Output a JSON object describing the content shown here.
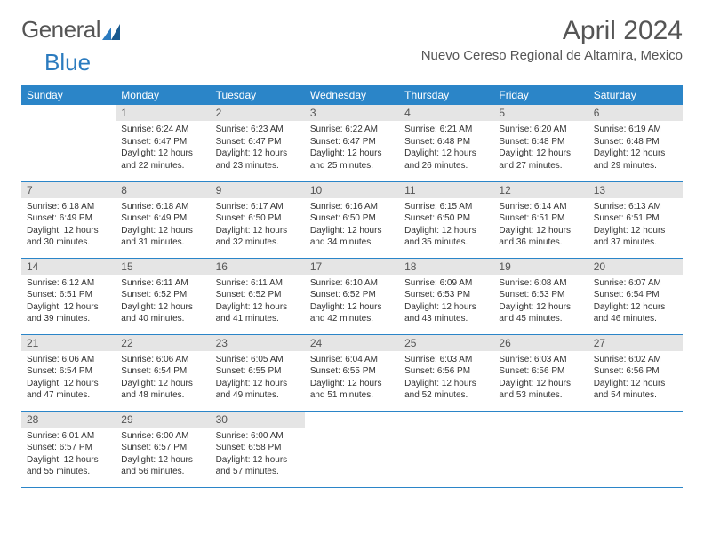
{
  "logo": {
    "part1": "General",
    "part2": "Blue"
  },
  "title": "April 2024",
  "location": "Nuevo Cereso Regional de Altamira, Mexico",
  "colors": {
    "header_bg": "#2b85c8",
    "header_text": "#ffffff",
    "daynum_bg": "#e5e5e5",
    "border": "#2b85c8",
    "text": "#333333",
    "title_text": "#555555"
  },
  "weekdays": [
    "Sunday",
    "Monday",
    "Tuesday",
    "Wednesday",
    "Thursday",
    "Friday",
    "Saturday"
  ],
  "weeks": [
    [
      {
        "blank": true
      },
      {
        "day": "1",
        "sunrise": "Sunrise: 6:24 AM",
        "sunset": "Sunset: 6:47 PM",
        "daylight": "Daylight: 12 hours and 22 minutes."
      },
      {
        "day": "2",
        "sunrise": "Sunrise: 6:23 AM",
        "sunset": "Sunset: 6:47 PM",
        "daylight": "Daylight: 12 hours and 23 minutes."
      },
      {
        "day": "3",
        "sunrise": "Sunrise: 6:22 AM",
        "sunset": "Sunset: 6:47 PM",
        "daylight": "Daylight: 12 hours and 25 minutes."
      },
      {
        "day": "4",
        "sunrise": "Sunrise: 6:21 AM",
        "sunset": "Sunset: 6:48 PM",
        "daylight": "Daylight: 12 hours and 26 minutes."
      },
      {
        "day": "5",
        "sunrise": "Sunrise: 6:20 AM",
        "sunset": "Sunset: 6:48 PM",
        "daylight": "Daylight: 12 hours and 27 minutes."
      },
      {
        "day": "6",
        "sunrise": "Sunrise: 6:19 AM",
        "sunset": "Sunset: 6:48 PM",
        "daylight": "Daylight: 12 hours and 29 minutes."
      }
    ],
    [
      {
        "day": "7",
        "sunrise": "Sunrise: 6:18 AM",
        "sunset": "Sunset: 6:49 PM",
        "daylight": "Daylight: 12 hours and 30 minutes."
      },
      {
        "day": "8",
        "sunrise": "Sunrise: 6:18 AM",
        "sunset": "Sunset: 6:49 PM",
        "daylight": "Daylight: 12 hours and 31 minutes."
      },
      {
        "day": "9",
        "sunrise": "Sunrise: 6:17 AM",
        "sunset": "Sunset: 6:50 PM",
        "daylight": "Daylight: 12 hours and 32 minutes."
      },
      {
        "day": "10",
        "sunrise": "Sunrise: 6:16 AM",
        "sunset": "Sunset: 6:50 PM",
        "daylight": "Daylight: 12 hours and 34 minutes."
      },
      {
        "day": "11",
        "sunrise": "Sunrise: 6:15 AM",
        "sunset": "Sunset: 6:50 PM",
        "daylight": "Daylight: 12 hours and 35 minutes."
      },
      {
        "day": "12",
        "sunrise": "Sunrise: 6:14 AM",
        "sunset": "Sunset: 6:51 PM",
        "daylight": "Daylight: 12 hours and 36 minutes."
      },
      {
        "day": "13",
        "sunrise": "Sunrise: 6:13 AM",
        "sunset": "Sunset: 6:51 PM",
        "daylight": "Daylight: 12 hours and 37 minutes."
      }
    ],
    [
      {
        "day": "14",
        "sunrise": "Sunrise: 6:12 AM",
        "sunset": "Sunset: 6:51 PM",
        "daylight": "Daylight: 12 hours and 39 minutes."
      },
      {
        "day": "15",
        "sunrise": "Sunrise: 6:11 AM",
        "sunset": "Sunset: 6:52 PM",
        "daylight": "Daylight: 12 hours and 40 minutes."
      },
      {
        "day": "16",
        "sunrise": "Sunrise: 6:11 AM",
        "sunset": "Sunset: 6:52 PM",
        "daylight": "Daylight: 12 hours and 41 minutes."
      },
      {
        "day": "17",
        "sunrise": "Sunrise: 6:10 AM",
        "sunset": "Sunset: 6:52 PM",
        "daylight": "Daylight: 12 hours and 42 minutes."
      },
      {
        "day": "18",
        "sunrise": "Sunrise: 6:09 AM",
        "sunset": "Sunset: 6:53 PM",
        "daylight": "Daylight: 12 hours and 43 minutes."
      },
      {
        "day": "19",
        "sunrise": "Sunrise: 6:08 AM",
        "sunset": "Sunset: 6:53 PM",
        "daylight": "Daylight: 12 hours and 45 minutes."
      },
      {
        "day": "20",
        "sunrise": "Sunrise: 6:07 AM",
        "sunset": "Sunset: 6:54 PM",
        "daylight": "Daylight: 12 hours and 46 minutes."
      }
    ],
    [
      {
        "day": "21",
        "sunrise": "Sunrise: 6:06 AM",
        "sunset": "Sunset: 6:54 PM",
        "daylight": "Daylight: 12 hours and 47 minutes."
      },
      {
        "day": "22",
        "sunrise": "Sunrise: 6:06 AM",
        "sunset": "Sunset: 6:54 PM",
        "daylight": "Daylight: 12 hours and 48 minutes."
      },
      {
        "day": "23",
        "sunrise": "Sunrise: 6:05 AM",
        "sunset": "Sunset: 6:55 PM",
        "daylight": "Daylight: 12 hours and 49 minutes."
      },
      {
        "day": "24",
        "sunrise": "Sunrise: 6:04 AM",
        "sunset": "Sunset: 6:55 PM",
        "daylight": "Daylight: 12 hours and 51 minutes."
      },
      {
        "day": "25",
        "sunrise": "Sunrise: 6:03 AM",
        "sunset": "Sunset: 6:56 PM",
        "daylight": "Daylight: 12 hours and 52 minutes."
      },
      {
        "day": "26",
        "sunrise": "Sunrise: 6:03 AM",
        "sunset": "Sunset: 6:56 PM",
        "daylight": "Daylight: 12 hours and 53 minutes."
      },
      {
        "day": "27",
        "sunrise": "Sunrise: 6:02 AM",
        "sunset": "Sunset: 6:56 PM",
        "daylight": "Daylight: 12 hours and 54 minutes."
      }
    ],
    [
      {
        "day": "28",
        "sunrise": "Sunrise: 6:01 AM",
        "sunset": "Sunset: 6:57 PM",
        "daylight": "Daylight: 12 hours and 55 minutes."
      },
      {
        "day": "29",
        "sunrise": "Sunrise: 6:00 AM",
        "sunset": "Sunset: 6:57 PM",
        "daylight": "Daylight: 12 hours and 56 minutes."
      },
      {
        "day": "30",
        "sunrise": "Sunrise: 6:00 AM",
        "sunset": "Sunset: 6:58 PM",
        "daylight": "Daylight: 12 hours and 57 minutes."
      },
      {
        "blank": true
      },
      {
        "blank": true
      },
      {
        "blank": true
      },
      {
        "blank": true
      }
    ]
  ]
}
